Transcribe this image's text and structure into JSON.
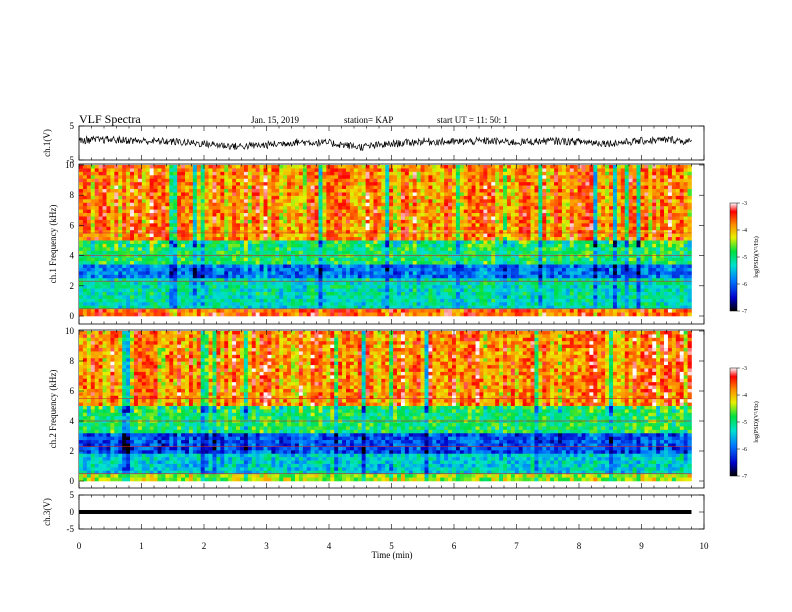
{
  "header": {
    "title": "VLF Spectra",
    "date": "Jan. 15, 2019",
    "station": "station= KAP",
    "start_time": "start  UT =  11: 50: 1"
  },
  "chart_data": [
    {
      "type": "line",
      "panel": "ch1-waveform",
      "ylabel": "ch.1(V)",
      "ylim": [
        -5,
        5
      ],
      "yticks": [
        "5",
        "-5"
      ],
      "xlim": [
        0,
        10
      ],
      "note": "noisy waveform between about -2 and 2 V, data ends near 9.8 min",
      "x": [
        0,
        0.5,
        1,
        1.5,
        2,
        2.5,
        3,
        3.5,
        4,
        4.5,
        5,
        5.5,
        6,
        6.5,
        7,
        7.5,
        8,
        8.5,
        9,
        9.5,
        9.8
      ],
      "y": [
        0.8,
        1.0,
        0.6,
        0.4,
        -0.2,
        -1.0,
        -0.6,
        0.3,
        0.0,
        -1.2,
        -0.3,
        0.5,
        0.3,
        0.6,
        0.2,
        0.6,
        0.4,
        -0.1,
        0.6,
        1.0,
        0.2
      ]
    },
    {
      "type": "heatmap",
      "panel": "ch1-spectrogram",
      "ylabel": "ch.1 Frequency (kHz)",
      "ylim": [
        0,
        10
      ],
      "yticks": [
        "0",
        "2",
        "4",
        "6",
        "8",
        "10"
      ],
      "xlim": [
        0,
        9.8
      ],
      "colorbar": {
        "label": "log(PSD)(V²/Hz)",
        "ticks": [
          "-3",
          "-4",
          "-5",
          "-6",
          "-7"
        ],
        "range": [
          -7,
          -3
        ]
      },
      "bands_khz": [
        {
          "from": 0,
          "to": 0.5,
          "log_psd": -3.6
        },
        {
          "from": 0.5,
          "to": 2.4,
          "log_psd": -5.2
        },
        {
          "from": 2.4,
          "to": 3.4,
          "log_psd": -5.9
        },
        {
          "from": 3.4,
          "to": 5.0,
          "log_psd": -4.9
        },
        {
          "from": 5.0,
          "to": 10,
          "log_psd": -3.8
        }
      ]
    },
    {
      "type": "heatmap",
      "panel": "ch2-spectrogram",
      "ylabel": "ch.2 Frequency (kHz)",
      "ylim": [
        0,
        10
      ],
      "yticks": [
        "0",
        "2",
        "4",
        "6",
        "8",
        "10"
      ],
      "xlim": [
        0,
        9.8
      ],
      "colorbar": {
        "label": "log(PSD)(V²/Hz)",
        "ticks": [
          "-3",
          "-4",
          "-5",
          "-6",
          "-7"
        ],
        "range": [
          -7,
          -3
        ]
      },
      "bands_khz": [
        {
          "from": 0,
          "to": 0.5,
          "log_psd": -4.4
        },
        {
          "from": 0.5,
          "to": 1.8,
          "log_psd": -5.4
        },
        {
          "from": 1.8,
          "to": 3.2,
          "log_psd": -6.1
        },
        {
          "from": 3.2,
          "to": 5.0,
          "log_psd": -4.9
        },
        {
          "from": 5.0,
          "to": 10,
          "log_psd": -3.8
        }
      ]
    },
    {
      "type": "line",
      "panel": "ch3-waveform",
      "ylabel": "ch.3(V)",
      "ylim": [
        -5,
        5
      ],
      "yticks": [
        "5",
        "0",
        "-5"
      ],
      "xlim": [
        0,
        10
      ],
      "xlabel": "Time (min)",
      "xticks": [
        "0",
        "1",
        "2",
        "3",
        "4",
        "5",
        "6",
        "7",
        "8",
        "9",
        "10"
      ],
      "note": "flat thick line",
      "x": [
        0,
        10
      ],
      "y": [
        0,
        0
      ]
    }
  ]
}
